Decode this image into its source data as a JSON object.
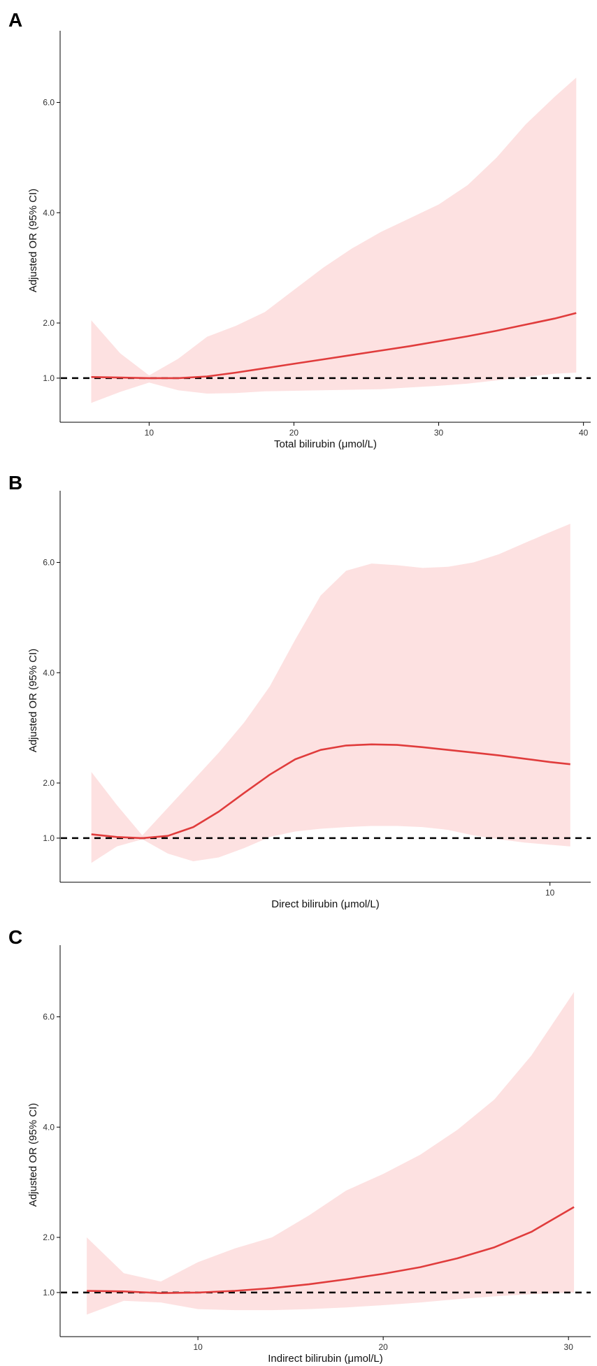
{
  "chart_data": [
    {
      "type": "line",
      "panel": "A",
      "title": "",
      "xlabel": "Total bilirubin (μmol/L)",
      "ylabel": "Adjusted OR (95% CI)",
      "xlim": [
        3.9,
        40.5
      ],
      "ylim": [
        0.2,
        7.3
      ],
      "xticks": [
        10,
        20,
        30,
        40
      ],
      "xtick_labels": [
        "10",
        "20",
        "30",
        "40"
      ],
      "yticks": [
        1,
        2,
        4,
        6
      ],
      "ytick_labels": [
        "1.0",
        "2.0",
        "4.0",
        "6.0"
      ],
      "reference_line": 1.0,
      "series": [
        {
          "name": "Adjusted OR",
          "x": [
            6,
            8,
            10,
            12,
            14,
            16,
            18,
            20,
            22,
            24,
            26,
            28,
            30,
            32,
            34,
            36,
            38,
            39.5
          ],
          "y": [
            1.02,
            1.01,
            1.0,
            1.0,
            1.03,
            1.1,
            1.18,
            1.26,
            1.34,
            1.42,
            1.5,
            1.58,
            1.67,
            1.76,
            1.86,
            1.97,
            2.08,
            2.18
          ],
          "lower": [
            0.55,
            0.75,
            0.92,
            0.78,
            0.72,
            0.73,
            0.76,
            0.77,
            0.78,
            0.79,
            0.8,
            0.83,
            0.86,
            0.9,
            0.96,
            1.02,
            1.08,
            1.1
          ],
          "upper": [
            2.05,
            1.45,
            1.05,
            1.35,
            1.75,
            1.95,
            2.2,
            2.6,
            3.0,
            3.35,
            3.65,
            3.9,
            4.15,
            4.5,
            5.0,
            5.6,
            6.1,
            6.45
          ]
        }
      ]
    },
    {
      "type": "line",
      "panel": "B",
      "title": "",
      "xlabel": "Direct bilirubin (μmol/L)",
      "ylabel": "Adjusted OR (95% CI)",
      "xlim": [
        0.4,
        10.8
      ],
      "ylim": [
        0.2,
        7.3
      ],
      "xticks": [
        10
      ],
      "xtick_labels": [
        "10"
      ],
      "yticks": [
        1,
        2,
        4,
        6
      ],
      "ytick_labels": [
        "1.0",
        "2.0",
        "4.0",
        "6.0"
      ],
      "reference_line": 1.0,
      "series": [
        {
          "name": "Adjusted OR",
          "x": [
            1,
            1.5,
            2,
            2.5,
            3,
            3.5,
            4,
            4.5,
            5,
            5.5,
            6,
            6.5,
            7,
            7.5,
            8,
            8.5,
            9,
            9.5,
            10,
            10.4
          ],
          "y": [
            1.07,
            1.02,
            1.0,
            1.04,
            1.2,
            1.48,
            1.82,
            2.15,
            2.43,
            2.6,
            2.68,
            2.7,
            2.69,
            2.65,
            2.6,
            2.55,
            2.5,
            2.44,
            2.38,
            2.34
          ],
          "lower": [
            0.55,
            0.85,
            0.98,
            0.72,
            0.58,
            0.65,
            0.82,
            1.02,
            1.12,
            1.17,
            1.2,
            1.22,
            1.22,
            1.2,
            1.15,
            1.05,
            0.98,
            0.92,
            0.88,
            0.85
          ],
          "upper": [
            2.2,
            1.6,
            1.05,
            1.55,
            2.05,
            2.55,
            3.1,
            3.75,
            4.6,
            5.4,
            5.85,
            5.98,
            5.95,
            5.9,
            5.92,
            6.0,
            6.15,
            6.35,
            6.55,
            6.7
          ]
        }
      ]
    },
    {
      "type": "line",
      "panel": "C",
      "title": "",
      "xlabel": "Indirect bilirubin (μmol/L)",
      "ylabel": "Adjusted OR (95% CI)",
      "xlim": [
        2.6,
        31.2
      ],
      "ylim": [
        0.2,
        7.3
      ],
      "xticks": [
        10,
        20,
        30
      ],
      "xtick_labels": [
        "10",
        "20",
        "30"
      ],
      "yticks": [
        1,
        2,
        4,
        6
      ],
      "ytick_labels": [
        "1.0",
        "2.0",
        "4.0",
        "6.0"
      ],
      "reference_line": 1.0,
      "series": [
        {
          "name": "Adjusted OR",
          "x": [
            4,
            6,
            8,
            10,
            12,
            14,
            16,
            18,
            20,
            22,
            24,
            26,
            28,
            30.3
          ],
          "y": [
            1.03,
            1.02,
            0.99,
            1.0,
            1.03,
            1.08,
            1.15,
            1.24,
            1.34,
            1.46,
            1.62,
            1.82,
            2.1,
            2.55
          ],
          "lower": [
            0.6,
            0.85,
            0.82,
            0.7,
            0.68,
            0.68,
            0.7,
            0.73,
            0.77,
            0.82,
            0.88,
            0.93,
            0.97,
            1.0
          ],
          "upper": [
            2.0,
            1.35,
            1.2,
            1.55,
            1.8,
            2.0,
            2.4,
            2.85,
            3.15,
            3.5,
            3.95,
            4.5,
            5.3,
            6.45
          ]
        }
      ]
    }
  ],
  "panels": [
    {
      "letter": "A"
    },
    {
      "letter": "B"
    },
    {
      "letter": "C"
    }
  ],
  "colors": {
    "line": "#e03c3c",
    "band": "#fde1e1",
    "reference": "#000000"
  }
}
